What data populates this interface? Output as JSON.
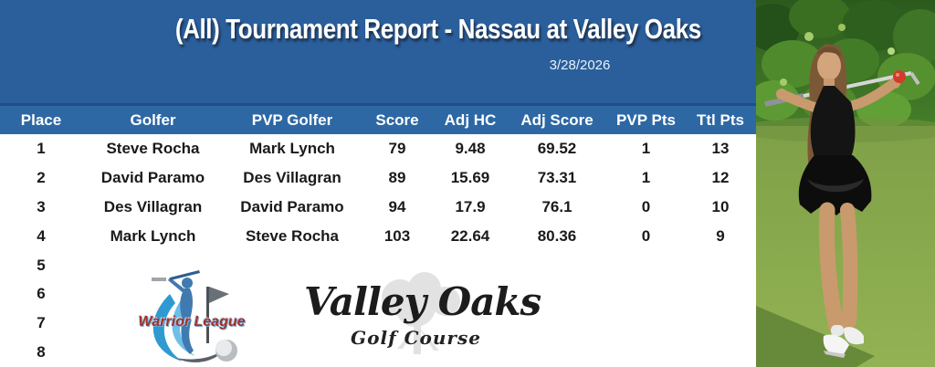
{
  "colors": {
    "banner_blue": "#2a5f9c",
    "header_blue": "#2d68a4",
    "divider_blue": "#1e4e86",
    "table_text": "#1a1a1a",
    "warrior_red": "#a33128",
    "warrior_swoosh_blue": "#2f9ad2",
    "logo_black": "#1c1c1c",
    "golf_ball_red": "#d43a2a"
  },
  "banner": {
    "title": "(All) Tournament Report - Nassau at Valley Oaks",
    "date": "3/28/2026"
  },
  "table": {
    "columns": [
      "Place",
      "Golfer",
      "PVP Golfer",
      "Score",
      "Adj HC",
      "Adj Score",
      "PVP Pts",
      "Ttl Pts"
    ],
    "col_keys": [
      "place",
      "golfer",
      "pvp-golfer",
      "score",
      "adj-hc",
      "adj-score",
      "pvp-pts",
      "ttl-pts"
    ],
    "rows": [
      {
        "cells": [
          "1",
          "Steve Rocha",
          "Mark Lynch",
          "79",
          "9.48",
          "69.52",
          "1",
          "13"
        ]
      },
      {
        "cells": [
          "2",
          "David Paramo",
          "Des Villagran",
          "89",
          "15.69",
          "73.31",
          "1",
          "12"
        ]
      },
      {
        "cells": [
          "3",
          "Des Villagran",
          "David Paramo",
          "94",
          "17.9",
          "76.1",
          "0",
          "10"
        ]
      },
      {
        "cells": [
          "4",
          "Mark Lynch",
          "Steve Rocha",
          "103",
          "22.64",
          "80.36",
          "0",
          "9"
        ]
      },
      {
        "cells": [
          "5",
          "",
          "",
          "",
          "",
          "",
          "",
          ""
        ]
      },
      {
        "cells": [
          "6",
          "",
          "",
          "",
          "",
          "",
          "",
          ""
        ]
      },
      {
        "cells": [
          "7",
          "",
          "",
          "",
          "",
          "",
          "",
          ""
        ]
      },
      {
        "cells": [
          "8",
          "",
          "",
          "",
          "",
          "",
          "",
          ""
        ]
      }
    ]
  },
  "logos": {
    "warrior_league": {
      "label": "Warrior League"
    },
    "valley_oaks": {
      "name": "Valley Oaks",
      "subtitle": "Golf Course"
    }
  }
}
